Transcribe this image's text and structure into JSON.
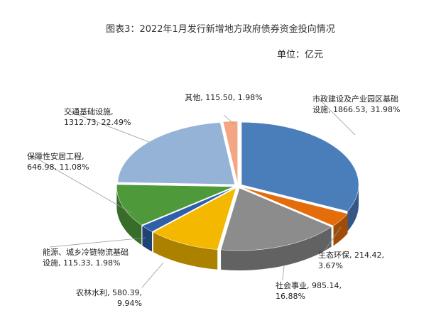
{
  "chart_data": {
    "type": "pie3d",
    "title": "图表3：2022年1月发行新增地方政府债券资金投向情况",
    "subtitle": "单位：亿元",
    "categories": [
      "市政建设及产业园区基础设施",
      "生态环保",
      "社会事业",
      "农林水利",
      "能源、城乡冷链物流基础设施",
      "保障性安居工程",
      "交通基础设施",
      "其他"
    ],
    "values": [
      1866.53,
      214.42,
      985.14,
      580.39,
      115.33,
      646.98,
      1312.73,
      115.5
    ],
    "labels": [
      "市政建设及产业园区基础设施, 1866.53, 31.98%",
      "生态环保, 214.42, 3.67%",
      "社会事业, 985.14, 16.88%",
      "农林水利, 580.39, 9.94%",
      "能源、城乡冷链物流基础设施, 115.33, 1.98%",
      "保障性安居工程, 646.98, 11.08%",
      "交通基础设施, 1312.73, 22.49%",
      "其他, 115.50, 1.98%"
    ],
    "colors": [
      "#4a7ebb",
      "#e46c0a",
      "#8c8c8c",
      "#f5b800",
      "#2e5fa8",
      "#4e9a3a",
      "#95b3d7",
      "#f4a582"
    ]
  }
}
